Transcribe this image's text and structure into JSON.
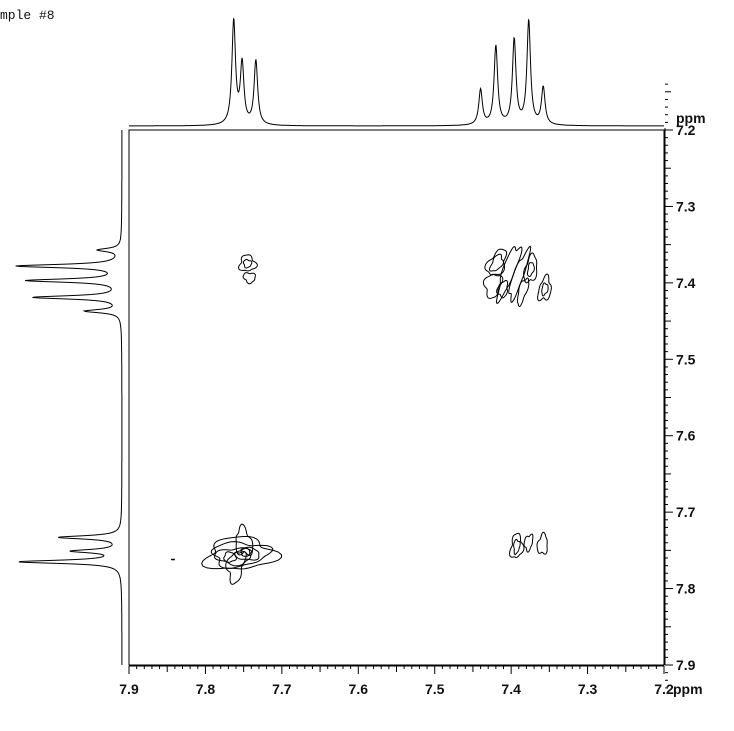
{
  "sample_label": "mple #8",
  "chart_data": {
    "type": "contour",
    "experiment": "2D homonuclear correlation",
    "x_axis": {
      "unit": "ppm",
      "range": [
        7.9,
        7.2
      ],
      "tick_labels": [
        "7.9",
        "7.8",
        "7.7",
        "7.6",
        "7.5",
        "7.4",
        "7.3",
        "7.2"
      ],
      "reversed": true
    },
    "y_axis": {
      "unit": "ppm",
      "range": [
        7.2,
        7.9
      ],
      "tick_labels": [
        "7.2",
        "7.3",
        "7.4",
        "7.5",
        "7.6",
        "7.7",
        "7.8",
        "7.9"
      ],
      "reversed": true
    },
    "top_projection": {
      "peaks": [
        {
          "ppm": 7.763,
          "height": 1.0
        },
        {
          "ppm": 7.752,
          "height": 0.58
        },
        {
          "ppm": 7.734,
          "height": 0.62
        },
        {
          "ppm": 7.44,
          "height": 0.34
        },
        {
          "ppm": 7.42,
          "height": 0.76
        },
        {
          "ppm": 7.396,
          "height": 0.82
        },
        {
          "ppm": 7.377,
          "height": 1.0
        },
        {
          "ppm": 7.358,
          "height": 0.36
        }
      ]
    },
    "left_projection": {
      "peaks": [
        {
          "ppm": 7.357,
          "height": 0.22
        },
        {
          "ppm": 7.378,
          "height": 1.0
        },
        {
          "ppm": 7.397,
          "height": 0.9
        },
        {
          "ppm": 7.419,
          "height": 0.84
        },
        {
          "ppm": 7.437,
          "height": 0.34
        },
        {
          "ppm": 7.733,
          "height": 0.6
        },
        {
          "ppm": 7.751,
          "height": 0.46
        },
        {
          "ppm": 7.765,
          "height": 0.98
        }
      ]
    },
    "cross_peaks": [
      {
        "x": 7.755,
        "y": 7.755,
        "type": "diagonal"
      },
      {
        "x": 7.39,
        "y": 7.39,
        "type": "diagonal"
      },
      {
        "x": 7.745,
        "y": 7.38,
        "type": "off-diagonal"
      },
      {
        "x": 7.385,
        "y": 7.745,
        "type": "off-diagonal"
      }
    ],
    "grid": false
  }
}
